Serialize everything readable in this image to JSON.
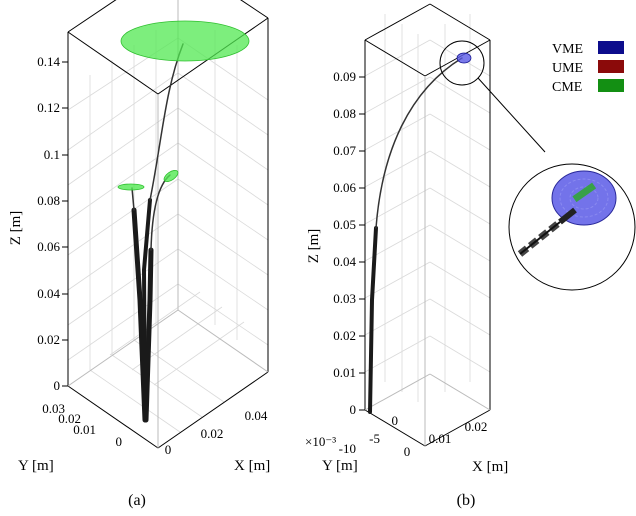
{
  "colors": {
    "VME": "#0c0c8c",
    "UME": "#8b0a0a",
    "CME": "#138f13",
    "ellipse_light": "#52e852",
    "disc_blue": "#5a5ae6"
  },
  "chart_data": [
    {
      "panel": "(a)",
      "type": "3d-line",
      "zlabel": "Z [m]",
      "ylabel": "Y [m]",
      "xlabel": "X [m]",
      "z_ticks": [
        "0",
        "0.02",
        "0.04",
        "0.06",
        "0.08",
        "0.1",
        "0.12",
        "0.14"
      ],
      "y_ticks": [
        "0",
        "0.01",
        "0.02",
        "0.03"
      ],
      "x_ticks": [
        "0",
        "0.02",
        "0.04"
      ],
      "zlim": [
        0,
        0.15
      ],
      "ylim": [
        0,
        0.03
      ],
      "xlim": [
        0,
        0.05
      ],
      "grid": true,
      "tubes": [
        {
          "name": "",
          "end_z": 0.14,
          "end_x": 0.018,
          "end_y": 0.0
        },
        {
          "name": "",
          "end_z": 0.085,
          "end_x": 0.01,
          "end_y": 0.005
        },
        {
          "name": "",
          "end_z": 0.09,
          "end_x": 0.025,
          "end_y": 0.004
        }
      ]
    },
    {
      "panel": "(b)",
      "type": "3d-line",
      "zlabel": "Z [m]",
      "ylabel": "Y [m]",
      "xlabel": "X [m]",
      "y_exponent": "×10⁻³",
      "z_ticks": [
        "0",
        "0.01",
        "0.02",
        "0.03",
        "0.04",
        "0.05",
        "0.06",
        "0.07",
        "0.08",
        "0.09"
      ],
      "y_ticks": [
        "-10",
        "-5",
        "0"
      ],
      "x_ticks": [
        "0",
        "0.01",
        "0.02"
      ],
      "zlim": [
        0,
        0.095
      ],
      "ylim": [
        -0.01,
        0
      ],
      "xlim": [
        0,
        0.025
      ],
      "grid": true,
      "tubes": [
        {
          "name": "",
          "end_z": 0.093,
          "end_x": 0.021,
          "end_y": -0.004
        }
      ]
    }
  ],
  "legend": {
    "placement": "top-right",
    "items": [
      {
        "label": "VME",
        "color_key": "VME"
      },
      {
        "label": "UME",
        "color_key": "UME"
      },
      {
        "label": "CME",
        "color_key": "CME"
      }
    ]
  },
  "captions": {
    "a": "(a)",
    "b": "(b)"
  }
}
